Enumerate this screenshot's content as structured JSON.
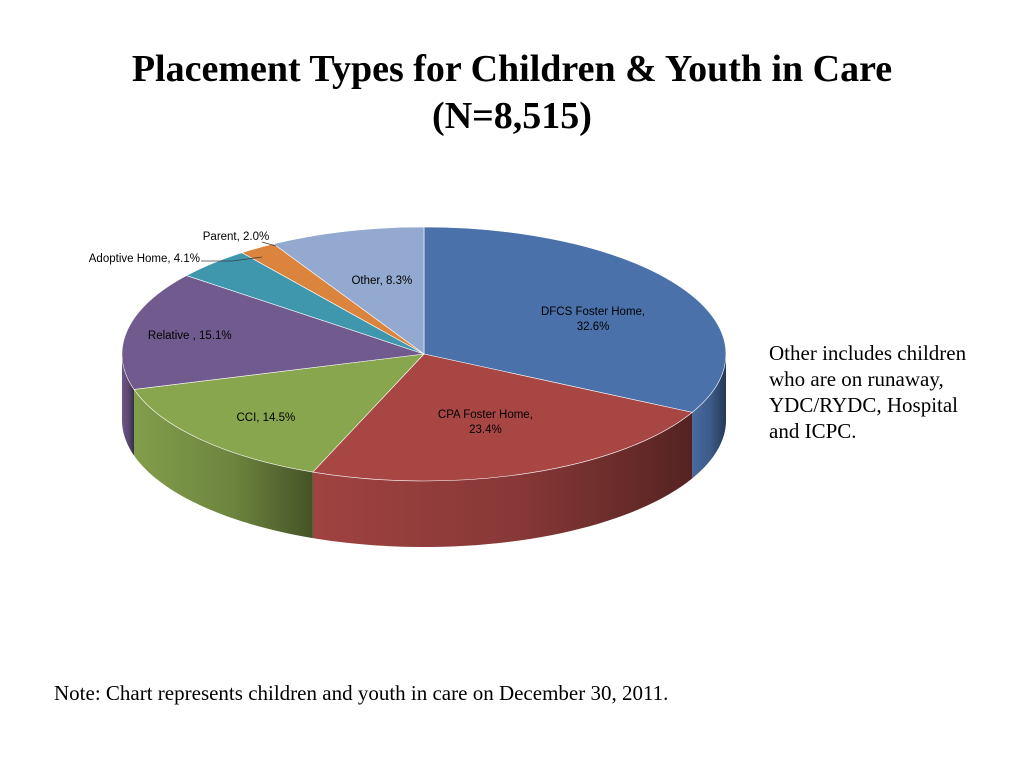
{
  "title": {
    "line1": "Placement Types for Children & Youth in Care",
    "line2": "(N=8,515)"
  },
  "side_note": "Other includes children who are on runaway, YDC/RYDC, Hospital  and ICPC.",
  "foot_note": "Note:  Chart represents children and youth in care on December 30, 2011.",
  "chart_data": {
    "type": "pie",
    "style": "3d",
    "slices": [
      {
        "label": "DFCS Foster Home,",
        "value": 32.6,
        "value_label": "32.6%",
        "color": "#4A71AA"
      },
      {
        "label": "CPA Foster Home,",
        "value": 23.4,
        "value_label": "23.4%",
        "color": "#A84644"
      },
      {
        "label": "CCI,",
        "value": 14.5,
        "value_label": "14.5%",
        "color": "#88A64E"
      },
      {
        "label": "Relative ,",
        "value": 15.1,
        "value_label": "15.1%",
        "color": "#715A8E"
      },
      {
        "label": "Adoptive Home,",
        "value": 4.1,
        "value_label": "4.1%",
        "color": "#3F97AE"
      },
      {
        "label": "Parent,",
        "value": 2.0,
        "value_label": "2.0%",
        "color": "#DB843D"
      },
      {
        "label": "Other,",
        "value": 8.3,
        "value_label": "8.3%",
        "color": "#93A9CF"
      }
    ]
  }
}
